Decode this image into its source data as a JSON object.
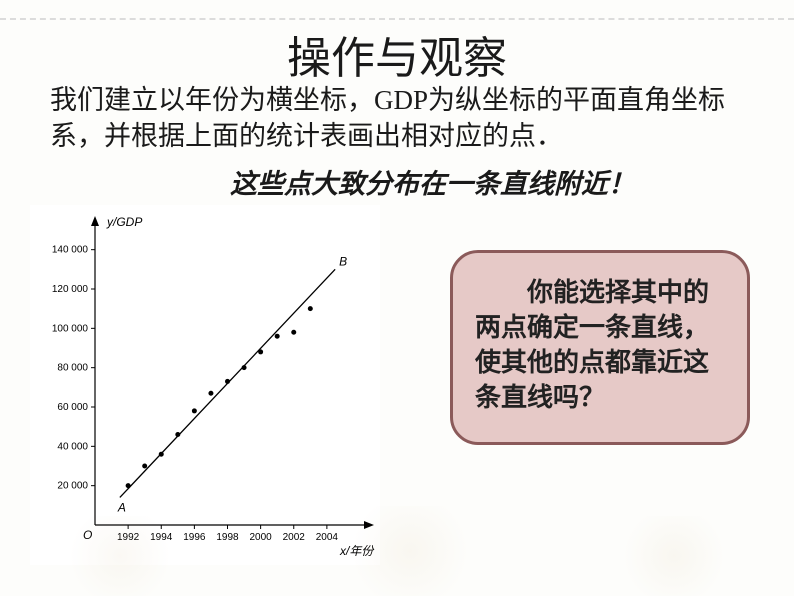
{
  "title": "操作与观察",
  "body_line1": "我们建立以年份为横坐标，GDP为纵坐标的平面直角坐标系，并根据上面的统计表画出相对应的点．",
  "emphasis": "这些点大致分布在一条直线附近！",
  "bubble_text": "　　你能选择其中的两点确定一条直线，使其他的点都靠近这条直线吗？",
  "chart": {
    "type": "scatter-with-line",
    "y_label": "y/GDP",
    "x_label": "x/年份",
    "x_ticks": [
      1992,
      1994,
      1996,
      1998,
      2000,
      2002,
      2004
    ],
    "y_ticks": [
      20000,
      40000,
      60000,
      80000,
      100000,
      120000,
      140000
    ],
    "y_tick_labels": [
      "20 000",
      "40 000",
      "60 000",
      "80 000",
      "100 000",
      "120 000",
      "140 000"
    ],
    "xlim": [
      1990,
      2006
    ],
    "ylim": [
      0,
      150000
    ],
    "points": [
      {
        "x": 1992,
        "y": 20000
      },
      {
        "x": 1993,
        "y": 30000
      },
      {
        "x": 1994,
        "y": 36000
      },
      {
        "x": 1995,
        "y": 46000
      },
      {
        "x": 1996,
        "y": 58000
      },
      {
        "x": 1997,
        "y": 67000
      },
      {
        "x": 1998,
        "y": 73000
      },
      {
        "x": 1999,
        "y": 80000
      },
      {
        "x": 2000,
        "y": 88000
      },
      {
        "x": 2001,
        "y": 96000
      },
      {
        "x": 2002,
        "y": 98000
      },
      {
        "x": 2003,
        "y": 110000
      }
    ],
    "line_start": {
      "x": 1991.5,
      "y": 14000,
      "label": "A"
    },
    "line_end": {
      "x": 2004.5,
      "y": 130000,
      "label": "B"
    },
    "origin_label": "O",
    "axis_color": "#000000",
    "point_color": "#000000",
    "line_color": "#000000",
    "point_radius": 2.5,
    "line_width": 1.3,
    "background_color": "#ffffff",
    "tick_fontsize": 10,
    "label_fontsize": 12
  }
}
